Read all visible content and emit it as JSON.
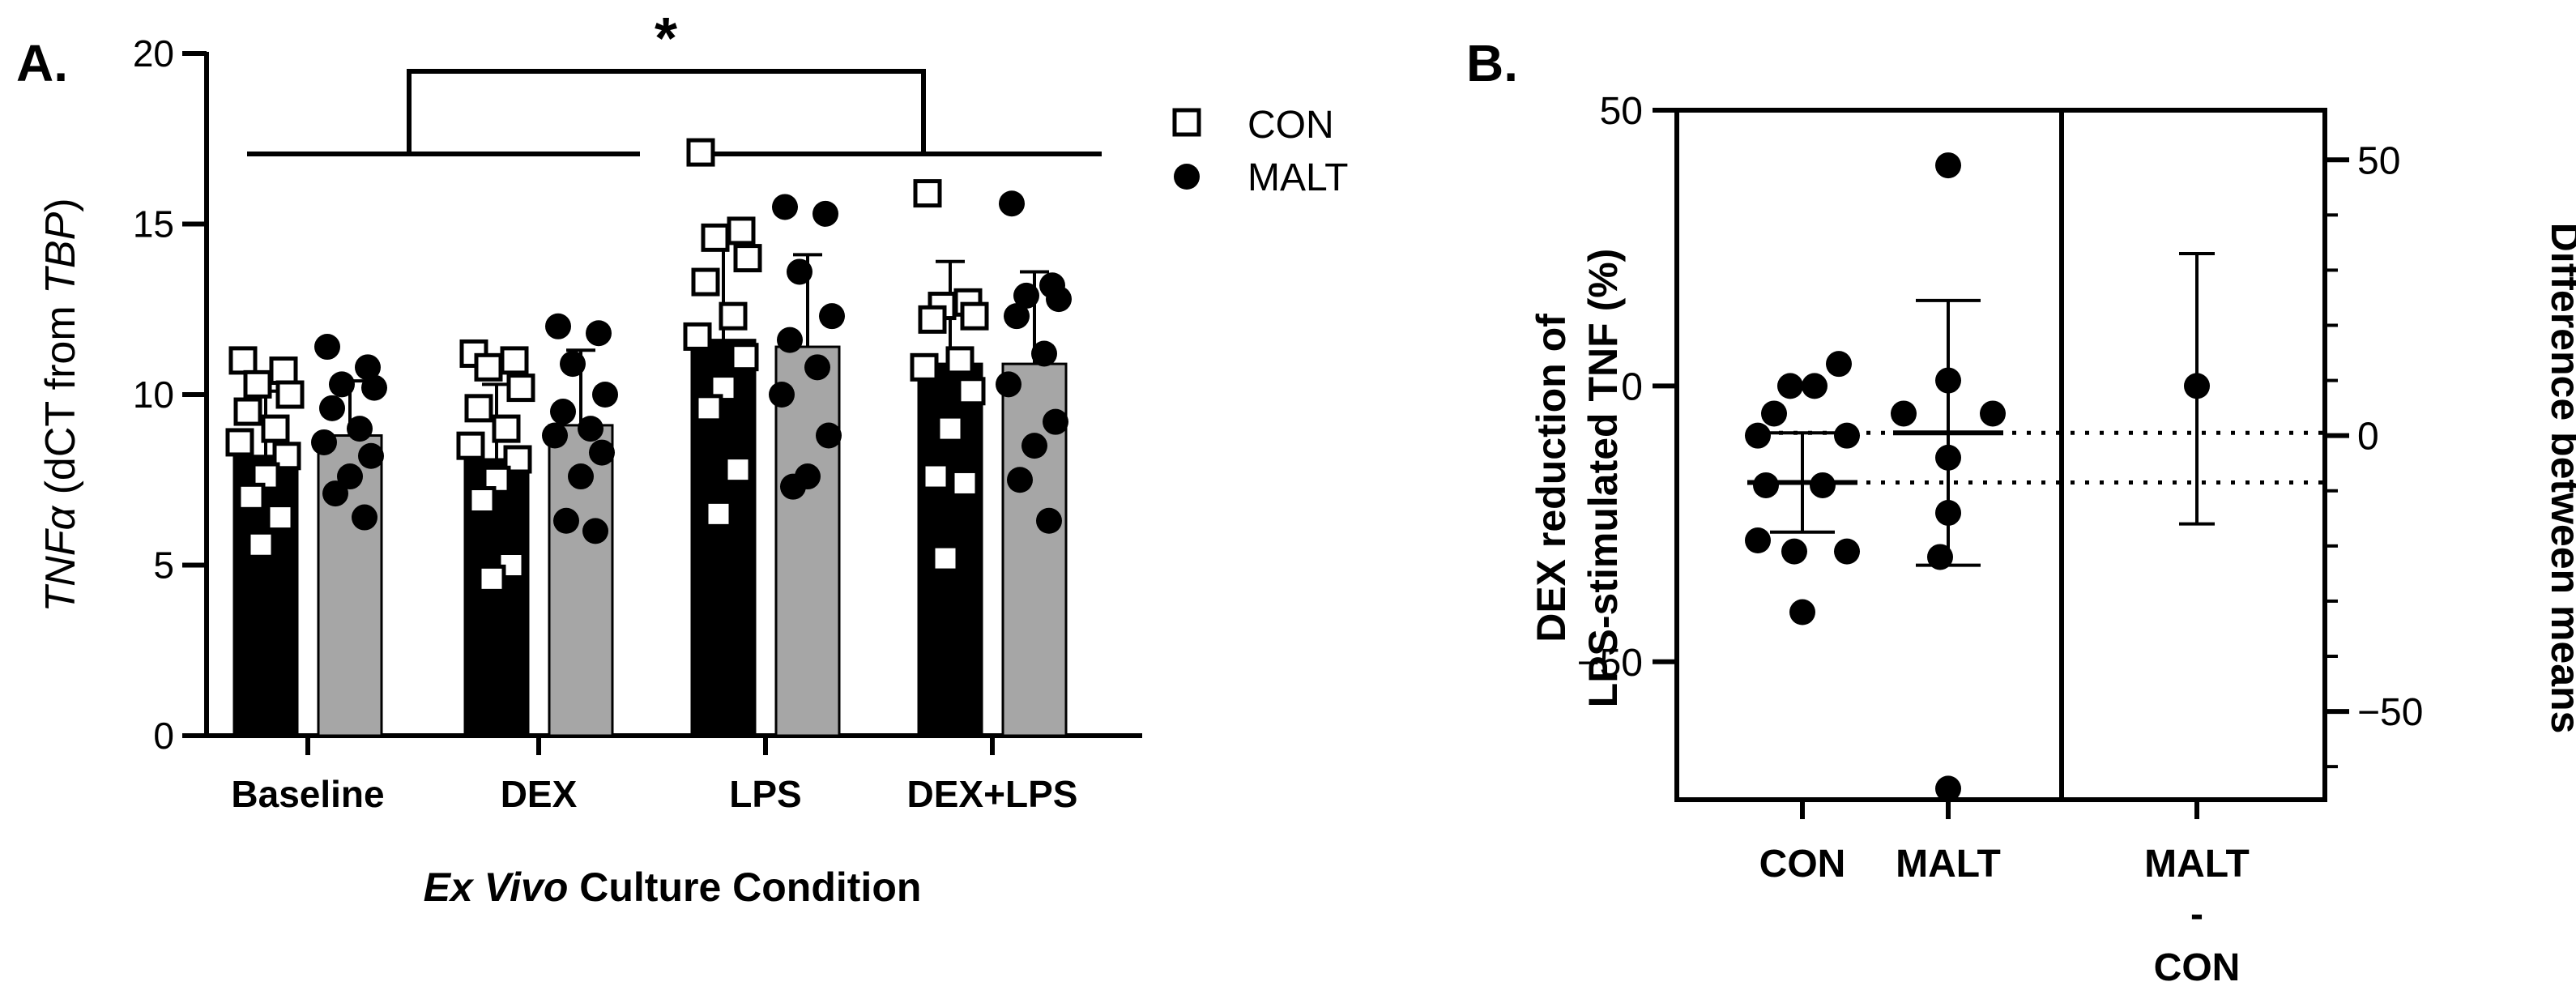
{
  "chart_data": [
    {
      "panel_label": "A.",
      "type": "bar",
      "ylabel": {
        "gene": "TNFα",
        "text": " (dCT from ",
        "ref": "TBP",
        "close": ")"
      },
      "xlabel": {
        "prefix": "Ex Vivo",
        "rest": " Culture Condition"
      },
      "ylim": [
        0,
        20
      ],
      "yticks": [
        0,
        5,
        10,
        15,
        20
      ],
      "categories": [
        "Baseline",
        "DEX",
        "LPS",
        "DEX+LPS"
      ],
      "legend": {
        "position": "top-right",
        "entries": [
          "CON",
          "MALT"
        ]
      },
      "significance": {
        "marker": "*",
        "groups": [
          [
            "Baseline",
            "DEX"
          ],
          [
            "LPS",
            "DEX+LPS"
          ]
        ]
      },
      "series": [
        {
          "name": "CON",
          "bar_color": "#000000",
          "point_style": "open-square",
          "means": [
            8.2,
            8.1,
            11.6,
            10.9
          ],
          "sd": [
            1.9,
            2.2,
            3.0,
            3.0
          ],
          "points": [
            [
              11.0,
              10.7,
              10.3,
              10.0,
              9.5,
              9.0,
              8.6,
              8.2,
              7.6,
              7.0,
              6.4,
              5.6
            ],
            [
              11.2,
              11.0,
              10.8,
              10.2,
              9.6,
              9.0,
              8.5,
              8.1,
              7.5,
              6.9,
              5.0,
              4.6
            ],
            [
              17.1,
              14.8,
              14.6,
              14.0,
              13.3,
              12.3,
              11.7,
              11.1,
              10.2,
              9.6,
              7.8,
              6.5
            ],
            [
              15.9,
              12.7,
              12.6,
              12.3,
              12.2,
              11.0,
              10.8,
              10.1,
              9.0,
              7.6,
              7.4,
              5.2
            ]
          ]
        },
        {
          "name": "MALT",
          "bar_color": "#a6a6a6",
          "point_style": "filled-circle",
          "means": [
            8.8,
            9.1,
            11.4,
            10.9
          ],
          "sd": [
            1.6,
            2.2,
            2.7,
            2.7
          ],
          "points": [
            [
              11.4,
              10.8,
              10.3,
              10.2,
              9.6,
              9.0,
              8.6,
              8.2,
              7.6,
              7.1,
              6.4
            ],
            [
              12.0,
              11.8,
              10.9,
              10.0,
              9.5,
              9.0,
              8.8,
              8.3,
              7.6,
              6.3,
              6.0
            ],
            [
              15.5,
              15.3,
              13.6,
              12.3,
              11.6,
              10.8,
              10.0,
              8.8,
              7.6,
              7.3
            ],
            [
              15.6,
              13.2,
              12.9,
              12.8,
              12.3,
              11.2,
              10.3,
              9.2,
              8.5,
              7.5,
              6.3
            ]
          ]
        }
      ]
    },
    {
      "panel_label": "B.",
      "type": "scatter",
      "ylabel_lines": [
        "DEX reduction of",
        "LPS-stimulated TNF (%)"
      ],
      "ylabel_right": "Difference between means",
      "ylim": [
        -75,
        50
      ],
      "yticks": [
        -50,
        0,
        50
      ],
      "right_yticks": [
        -50,
        0,
        50
      ],
      "categories": [
        "CON",
        "MALT"
      ],
      "diff_label": [
        "MALT",
        "-",
        "CON"
      ],
      "groups": [
        {
          "name": "CON",
          "mean": -17.5,
          "sd": 9,
          "points": [
            -5,
            4,
            0,
            0,
            -9,
            -9,
            -18,
            -18,
            -28,
            -30,
            -30,
            -41
          ]
        },
        {
          "name": "MALT",
          "mean": -8.5,
          "sd": 24,
          "points": [
            40,
            1,
            -5,
            -5,
            -13,
            -23,
            -31,
            -73
          ]
        }
      ],
      "difference": {
        "estimate": 9,
        "ci": [
          -16,
          33
        ],
        "right_ylim": [
          -66,
          59
        ]
      }
    }
  ]
}
